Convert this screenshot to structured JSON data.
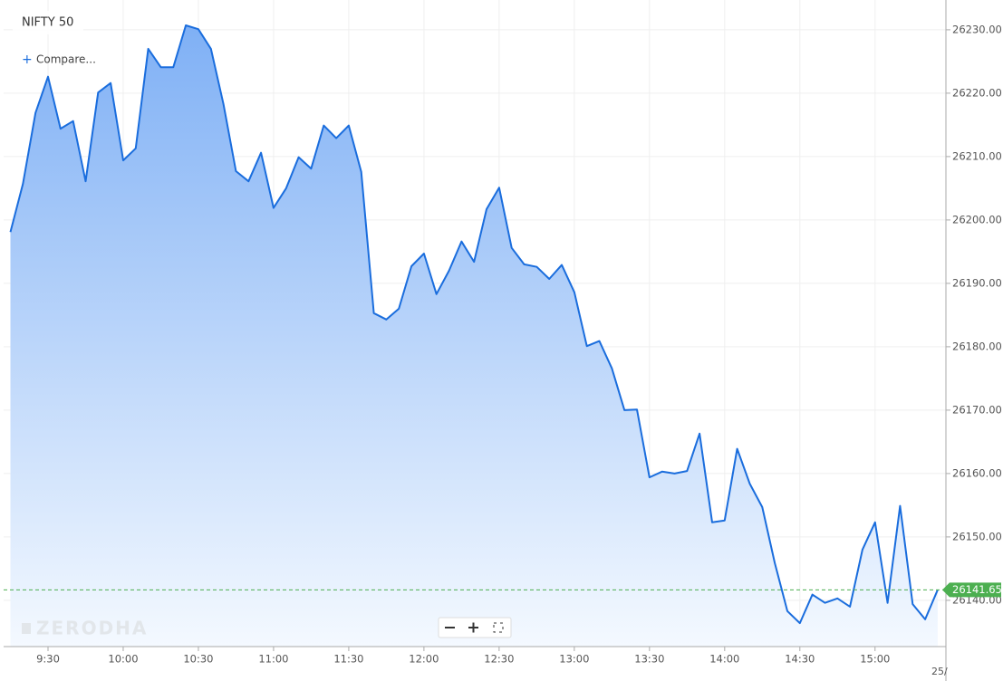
{
  "chart_data": {
    "type": "area",
    "title": "NIFTY 50",
    "compare_label": "Compare...",
    "watermark": "ZERODHA",
    "date_label": "25/",
    "categories": [
      null,
      null,
      null,
      "9:30",
      null,
      null,
      null,
      null,
      null,
      "10:00",
      null,
      null,
      null,
      null,
      null,
      "10:30",
      null,
      null,
      null,
      null,
      null,
      "11:00",
      null,
      null,
      null,
      null,
      null,
      "11:30",
      null,
      null,
      null,
      null,
      null,
      "12:00",
      null,
      null,
      null,
      null,
      null,
      "12:30",
      null,
      null,
      null,
      null,
      null,
      "13:00",
      null,
      null,
      null,
      null,
      null,
      "13:30",
      null,
      null,
      null,
      null,
      null,
      "14:00",
      null,
      null,
      null,
      null,
      null,
      "14:30",
      null,
      null,
      null,
      null,
      null,
      "15:00",
      null,
      null,
      null,
      null,
      null
    ],
    "series": [
      {
        "name": "NIFTY 50",
        "color": "#1a6ddd",
        "values": [
          26198.1,
          26205.7,
          26216.9,
          26222.6,
          26214.4,
          26215.6,
          26206.1,
          26220.1,
          26221.6,
          26209.4,
          26211.3,
          26227.0,
          26224.1,
          26224.1,
          26230.7,
          26230.1,
          26227.0,
          26218.3,
          26207.7,
          26206.1,
          26210.6,
          26201.9,
          26205.0,
          26209.9,
          26208.1,
          26214.9,
          26212.9,
          26214.9,
          26207.6,
          26185.3,
          26184.3,
          26186.0,
          26192.7,
          26194.7,
          26188.3,
          26192.0,
          26196.6,
          26193.4,
          26201.7,
          26205.1,
          26195.6,
          26193.0,
          26192.6,
          26190.7,
          26192.9,
          26188.6,
          26180.1,
          26180.9,
          26176.6,
          26170.0,
          26170.1,
          26159.4,
          26160.3,
          26160.0,
          26160.4,
          26166.3,
          26152.3,
          26152.6,
          26163.9,
          26158.4,
          26154.7,
          26145.9,
          26138.3,
          26136.4,
          26140.9,
          26139.6,
          26140.3,
          26139.0,
          26148.0,
          26152.3,
          26139.6,
          26154.9,
          26139.4,
          26137.0,
          26141.65
        ]
      }
    ],
    "last_price": 26141.65,
    "last_price_color": "#4caf50",
    "ylim": [
      26132.7,
      26234.7
    ],
    "yticks": [
      {
        "value": 26140,
        "label": "26140.00"
      },
      {
        "value": 26150,
        "label": "26150.00"
      },
      {
        "value": 26160,
        "label": "26160.00"
      },
      {
        "value": 26170,
        "label": "26170.00"
      },
      {
        "value": 26180,
        "label": "26180.00"
      },
      {
        "value": 26190,
        "label": "26190.00"
      },
      {
        "value": 26200,
        "label": "26200.00"
      },
      {
        "value": 26210,
        "label": "26210.00"
      },
      {
        "value": 26220,
        "label": "26220.00"
      },
      {
        "value": 26230,
        "label": "26230.00"
      }
    ],
    "grid": true
  }
}
